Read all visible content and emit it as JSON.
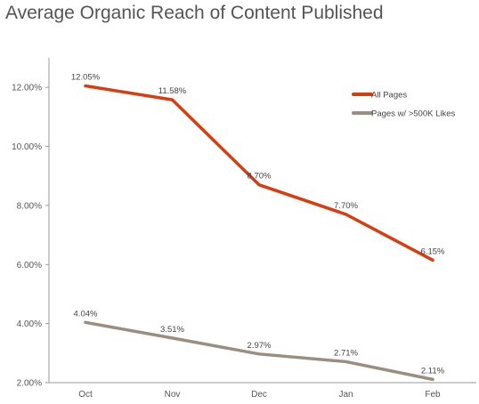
{
  "chart_data": {
    "type": "line",
    "title": "Average Organic Reach of Content Published",
    "categories": [
      "Oct",
      "Nov",
      "Dec",
      "Jan",
      "Feb"
    ],
    "series": [
      {
        "name": "All Pages",
        "color": "#d93c0f",
        "values": [
          12.05,
          11.58,
          8.7,
          7.7,
          6.15
        ],
        "labels": [
          "12.05%",
          "11.58%",
          "8.70%",
          "7.70%",
          "6.15%"
        ]
      },
      {
        "name": "Pages w/ >500K Likes",
        "color": "#9b8e80",
        "values": [
          4.04,
          3.51,
          2.97,
          2.71,
          2.11
        ],
        "labels": [
          "4.04%",
          "3.51%",
          "2.97%",
          "2.71%",
          "2.11%"
        ]
      }
    ],
    "y_ticks": [
      2,
      4,
      6,
      8,
      10,
      12
    ],
    "y_tick_labels": [
      "2.00%",
      "4.00%",
      "6.00%",
      "8.00%",
      "10.00%",
      "12.00%"
    ],
    "ylim": [
      2,
      13
    ],
    "xlabel": "",
    "ylabel": "",
    "grid": false,
    "legend_position": "top-right"
  }
}
